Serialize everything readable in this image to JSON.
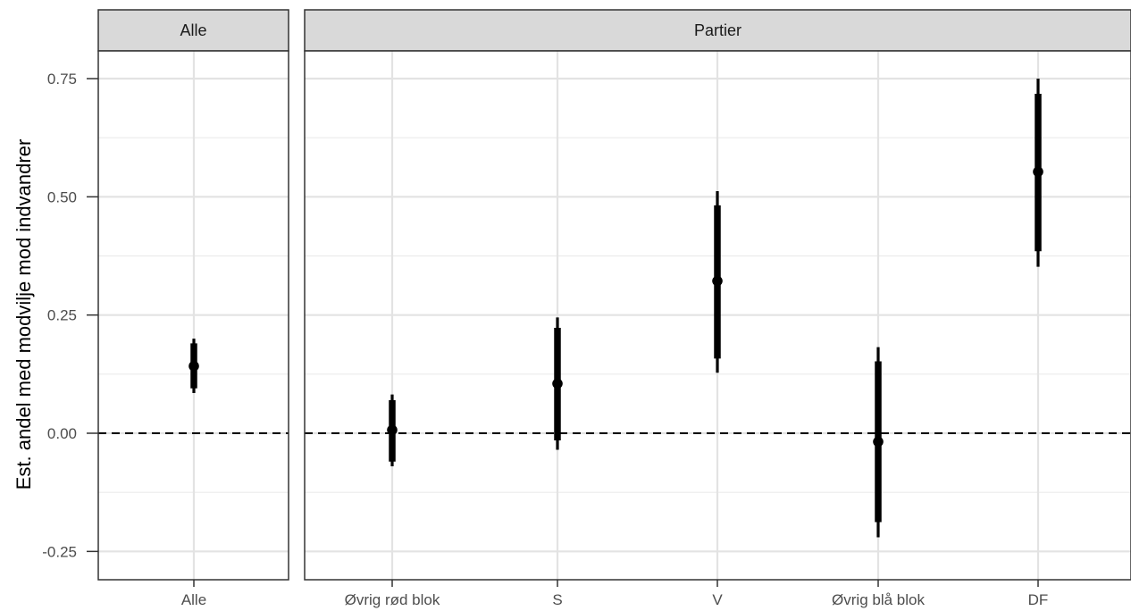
{
  "chart_data": {
    "type": "pointrange",
    "ylabel": "Est. andel med modvilje mod indvandrer",
    "xlabel": "",
    "ylim": [
      -0.3,
      0.8
    ],
    "yticks": [
      {
        "value": -0.25,
        "label": "-0.25"
      },
      {
        "value": 0.0,
        "label": "0.00"
      },
      {
        "value": 0.25,
        "label": "0.25"
      },
      {
        "value": 0.5,
        "label": "0.50"
      },
      {
        "value": 0.75,
        "label": "0.75"
      }
    ],
    "reference_line": {
      "value": 0.0,
      "style": "dashed"
    },
    "grid": true,
    "panels": [
      {
        "strip_label": "Alle",
        "categories": [
          "Alle"
        ],
        "estimates": [
          {
            "category": "Alle",
            "estimate": 0.142,
            "inner": [
              0.095,
              0.19
            ],
            "outer": [
              0.085,
              0.2
            ]
          }
        ]
      },
      {
        "strip_label": "Partier",
        "categories": [
          "Øvrig rød blok",
          "S",
          "V",
          "Øvrig blå blok",
          "DF"
        ],
        "estimates": [
          {
            "category": "Øvrig rød blok",
            "estimate": 0.007,
            "inner": [
              -0.06,
              0.07
            ],
            "outer": [
              -0.07,
              0.082
            ]
          },
          {
            "category": "S",
            "estimate": 0.105,
            "inner": [
              -0.015,
              0.223
            ],
            "outer": [
              -0.035,
              0.245
            ]
          },
          {
            "category": "V",
            "estimate": 0.322,
            "inner": [
              0.158,
              0.482
            ],
            "outer": [
              0.128,
              0.512
            ]
          },
          {
            "category": "Øvrig blå blok",
            "estimate": -0.018,
            "inner": [
              -0.188,
              0.152
            ],
            "outer": [
              -0.22,
              0.182
            ]
          },
          {
            "category": "DF",
            "estimate": 0.553,
            "inner": [
              0.385,
              0.718
            ],
            "outer": [
              0.352,
              0.75
            ]
          }
        ]
      }
    ]
  }
}
